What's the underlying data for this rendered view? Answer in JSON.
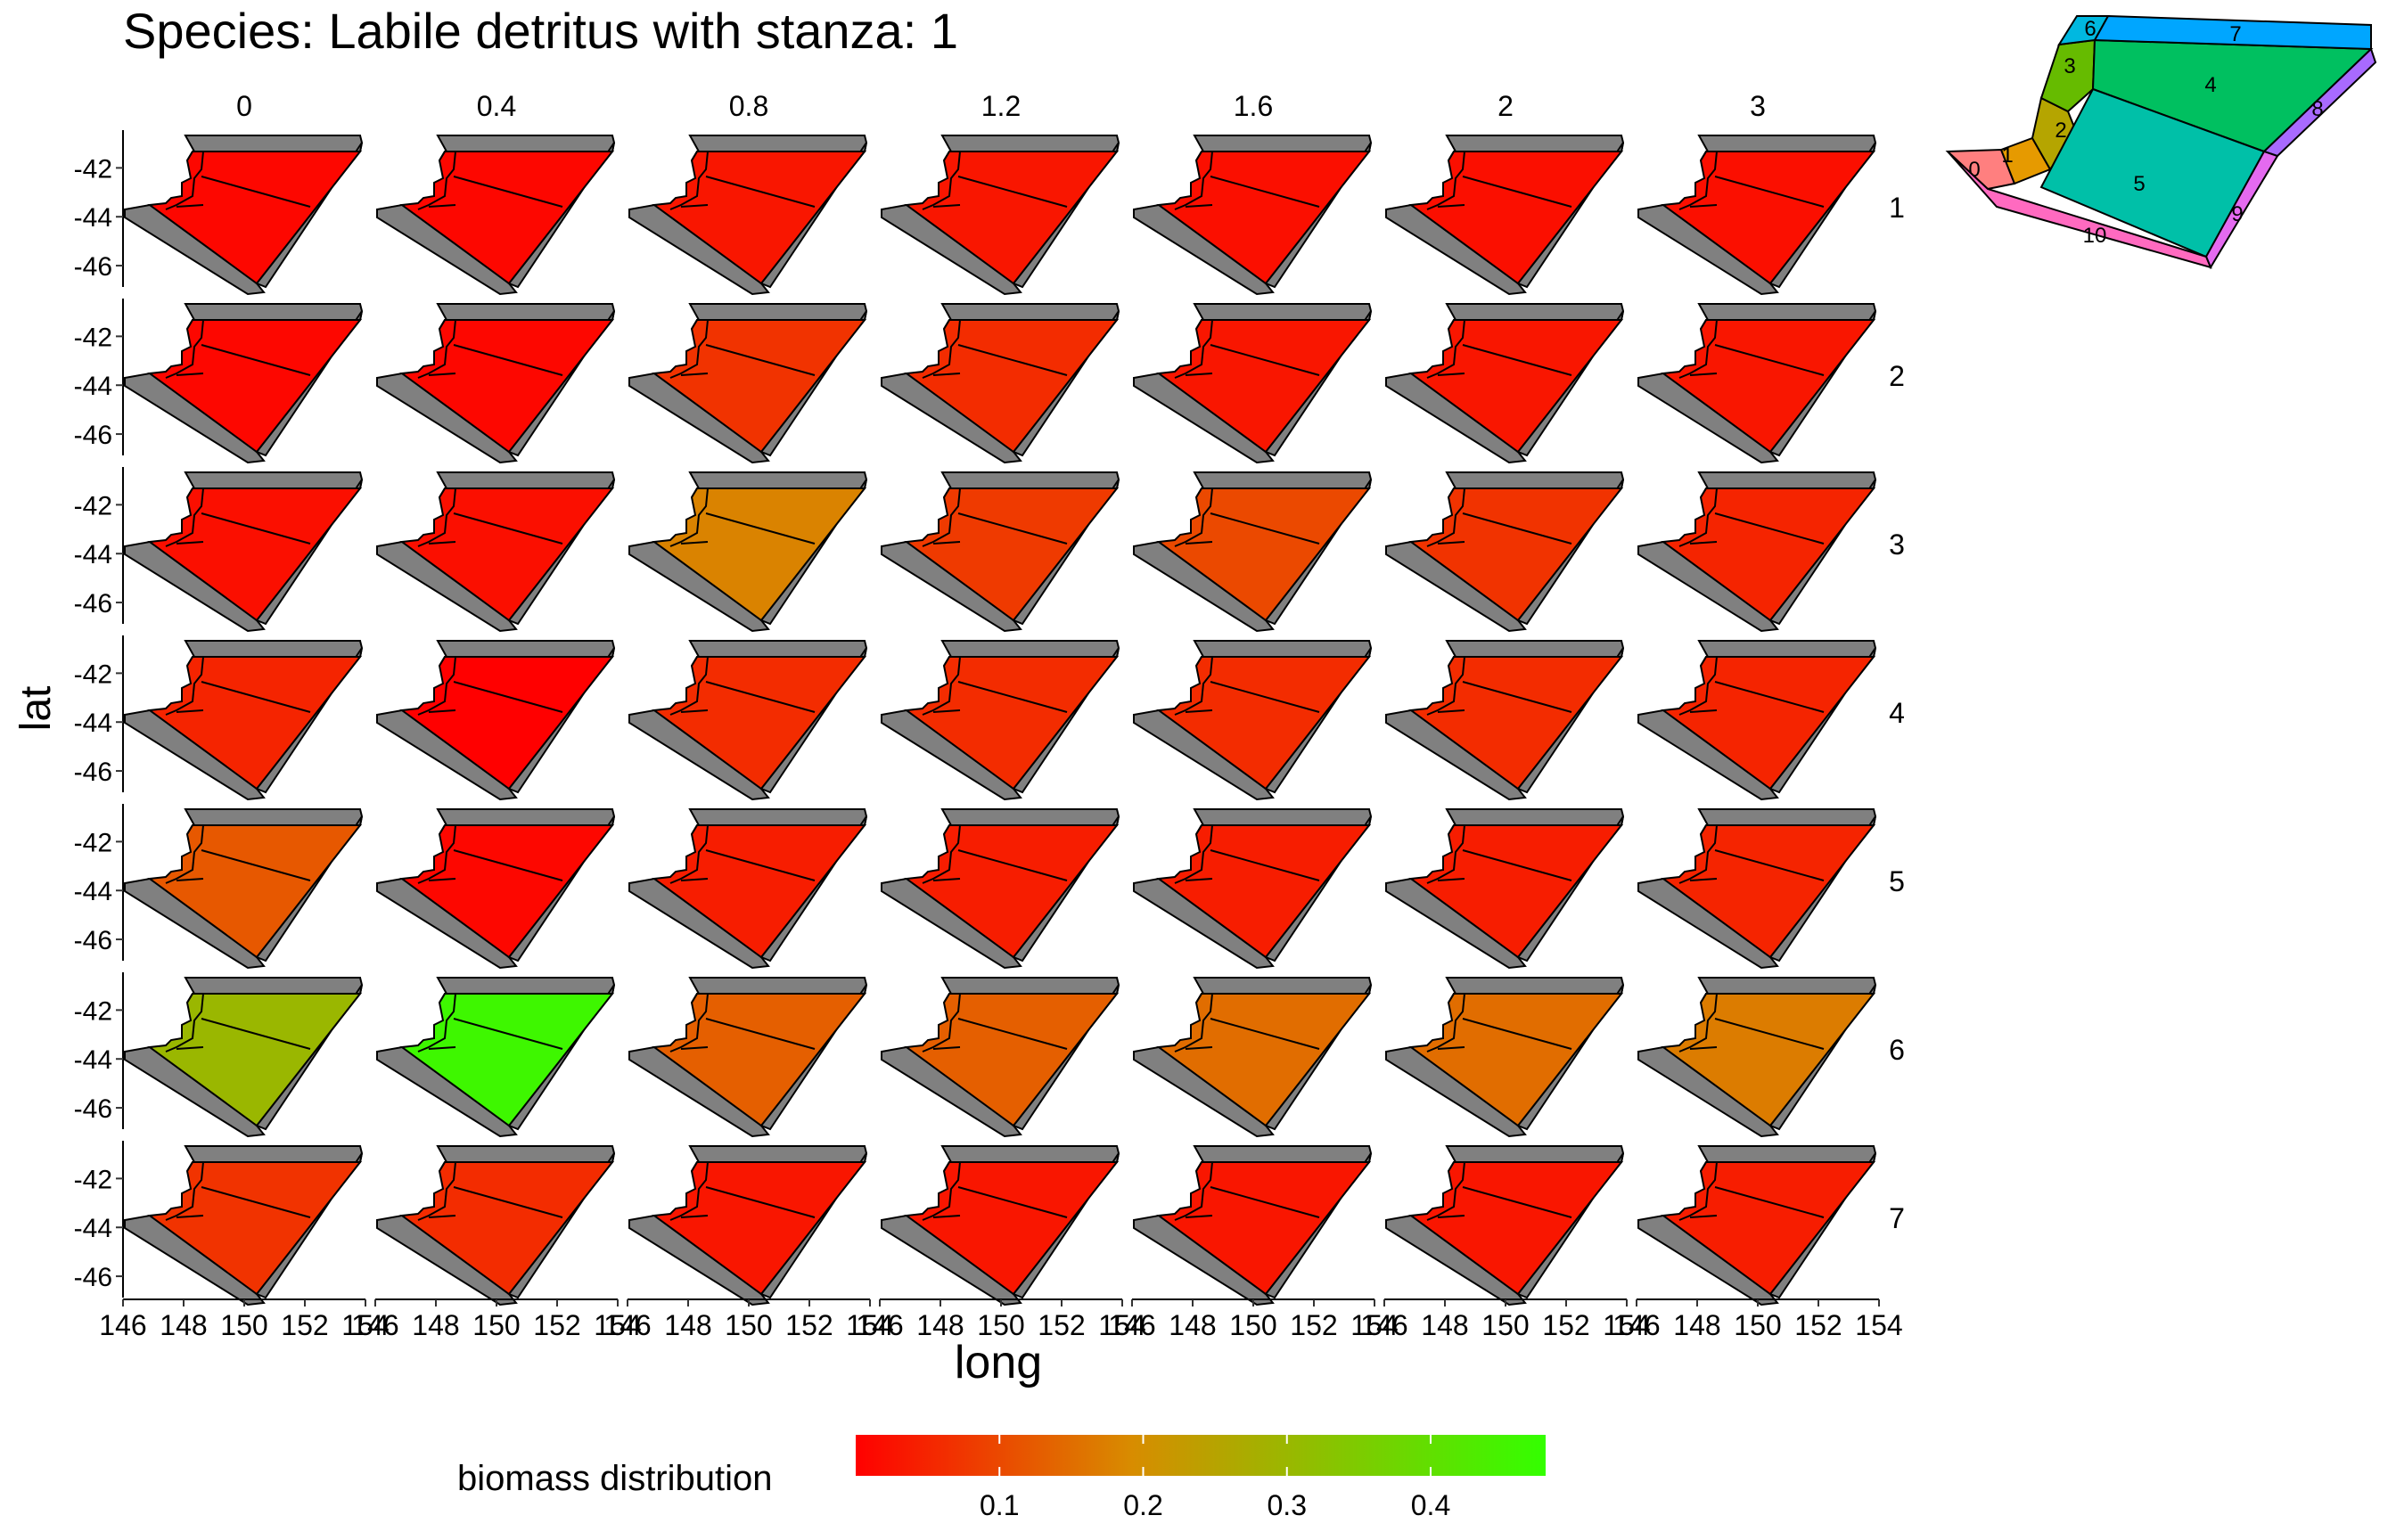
{
  "title": "Species: Labile detritus with stanza: 1",
  "colors": {
    "low": "#ff0000",
    "mid": "#d88c00",
    "high": "#33ff00",
    "boundary_box": "#808080",
    "outline": "#000000"
  },
  "chart_data": {
    "type": "heatmap",
    "title": "Species: Labile detritus with stanza: 1",
    "xlabel": "long",
    "ylabel": "lat",
    "facet_columns": [
      "0",
      "0.4",
      "0.8",
      "1.2",
      "1.6",
      "2",
      "3"
    ],
    "facet_rows": [
      "1",
      "2",
      "3",
      "4",
      "5",
      "6",
      "7"
    ],
    "x_ticks": [
      "146",
      "148",
      "150",
      "152",
      "154"
    ],
    "y_ticks": [
      "-42",
      "-44",
      "-46"
    ],
    "xlim": [
      146,
      154
    ],
    "ylim": [
      -46.8,
      -40.6
    ],
    "legend": {
      "title": "biomass distribution",
      "position": "bottom",
      "range": [
        0,
        0.48
      ],
      "ticks": [
        "0.1",
        "0.2",
        "0.3",
        "0.4"
      ]
    },
    "panel_values": [
      [
        0.01,
        0.01,
        0.03,
        0.03,
        0.02,
        0.02,
        0.02
      ],
      [
        0.01,
        0.01,
        0.07,
        0.06,
        0.03,
        0.03,
        0.03
      ],
      [
        0.02,
        0.02,
        0.18,
        0.08,
        0.1,
        0.07,
        0.05
      ],
      [
        0.05,
        0.0,
        0.06,
        0.06,
        0.06,
        0.06,
        0.05
      ],
      [
        0.12,
        0.01,
        0.04,
        0.04,
        0.04,
        0.04,
        0.05
      ],
      [
        0.3,
        0.46,
        0.13,
        0.13,
        0.15,
        0.15,
        0.17
      ],
      [
        0.07,
        0.06,
        0.03,
        0.03,
        0.03,
        0.03,
        0.04
      ]
    ],
    "inset_map": {
      "box_labels": [
        "0",
        "1",
        "2",
        "3",
        "4",
        "5",
        "6",
        "7",
        "8",
        "9",
        "10"
      ],
      "box_colors": [
        "#ff7f7f",
        "#e69a00",
        "#b5a500",
        "#66bb00",
        "#00c060",
        "#00c0a8",
        "#00b8e0",
        "#00a6ff",
        "#a86aff",
        "#e46af0",
        "#ff6ac0"
      ]
    }
  }
}
